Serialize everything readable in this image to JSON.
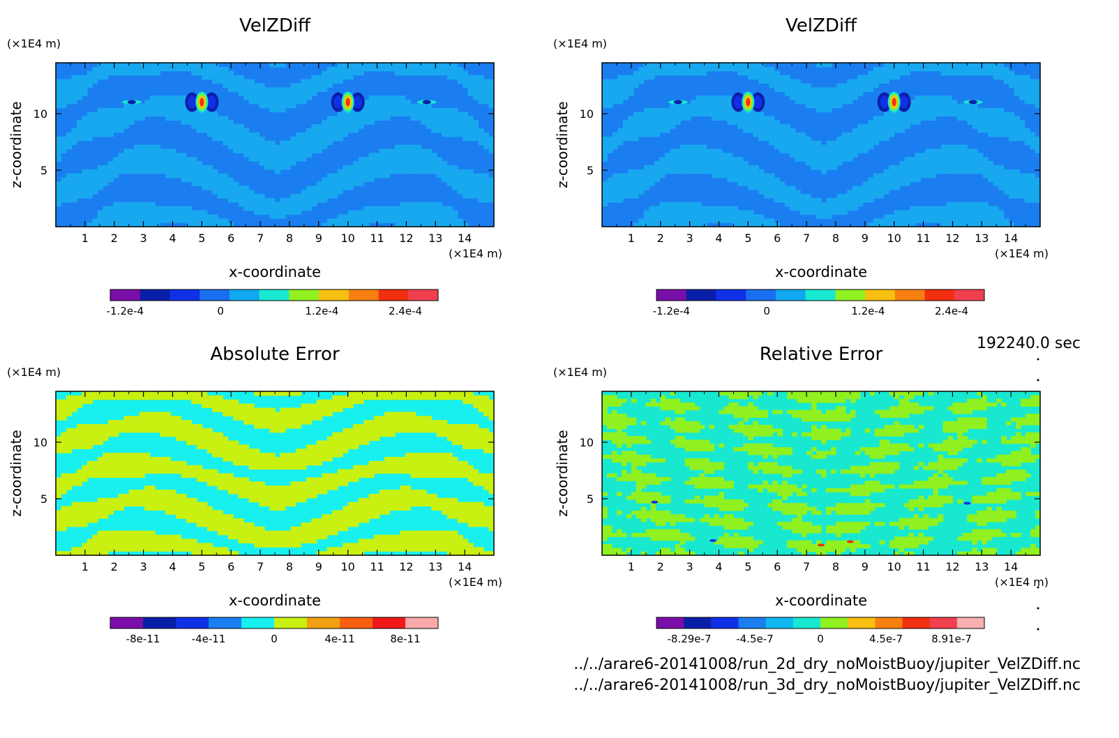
{
  "chart_data": [
    {
      "type": "heatmap",
      "title": "VelZDiff",
      "xlabel": "x-coordinate",
      "ylabel": "z-coordinate",
      "x_unit": "(×1E4 m)",
      "y_unit": "(×1E4 m)",
      "xlim": [
        0,
        15
      ],
      "ylim": [
        0,
        14.5
      ],
      "x_ticks": [
        1,
        2,
        3,
        4,
        5,
        6,
        7,
        8,
        9,
        10,
        11,
        12,
        13,
        14
      ],
      "y_ticks": [
        5,
        10
      ],
      "colorbar": {
        "colors": [
          "#7a0ea8",
          "#0a1fa8",
          "#1030e8",
          "#1a6ef0",
          "#10a8f0",
          "#18e8d0",
          "#90f020",
          "#f8c010",
          "#f88010",
          "#f03010",
          "#f04050"
        ],
        "tick_labels": [
          "-1.2e-4",
          "0",
          "1.2e-4",
          "2.4e-4"
        ]
      }
    },
    {
      "type": "heatmap",
      "title": "VelZDiff",
      "xlabel": "x-coordinate",
      "ylabel": "z-coordinate",
      "x_unit": "(×1E4 m)",
      "y_unit": "(×1E4 m)",
      "xlim": [
        0,
        15
      ],
      "ylim": [
        0,
        14.5
      ],
      "x_ticks": [
        1,
        2,
        3,
        4,
        5,
        6,
        7,
        8,
        9,
        10,
        11,
        12,
        13,
        14
      ],
      "y_ticks": [
        5,
        10
      ],
      "colorbar": {
        "colors": [
          "#7a0ea8",
          "#0a1fa8",
          "#1030e8",
          "#1a6ef0",
          "#10a8f0",
          "#18e8d0",
          "#90f020",
          "#f8c010",
          "#f88010",
          "#f03010",
          "#f04050"
        ],
        "tick_labels": [
          "-1.2e-4",
          "0",
          "1.2e-4",
          "2.4e-4"
        ]
      }
    },
    {
      "type": "heatmap",
      "title": "Absolute Error",
      "xlabel": "x-coordinate",
      "ylabel": "z-coordinate",
      "x_unit": "(×1E4 m)",
      "y_unit": "(×1E4 m)",
      "xlim": [
        0,
        15
      ],
      "ylim": [
        0,
        14.5
      ],
      "x_ticks": [
        1,
        2,
        3,
        4,
        5,
        6,
        7,
        8,
        9,
        10,
        11,
        12,
        13,
        14
      ],
      "y_ticks": [
        5,
        10
      ],
      "colorbar": {
        "colors": [
          "#7a0ea8",
          "#0a1fa8",
          "#1030e8",
          "#1a7ef0",
          "#18f0f0",
          "#c8f010",
          "#f0a010",
          "#f86010",
          "#f01818",
          "#f8a8a8"
        ],
        "tick_labels": [
          "-8e-11",
          "-4e-11",
          "0",
          "4e-11",
          "8e-11"
        ]
      }
    },
    {
      "type": "heatmap",
      "title": "Relative Error",
      "xlabel": "x-coordinate",
      "ylabel": "z-coordinate",
      "x_unit": "(×1E4 m)",
      "y_unit": "(×1E4 m)",
      "xlim": [
        0,
        15
      ],
      "ylim": [
        0,
        14.5
      ],
      "x_ticks": [
        1,
        2,
        3,
        4,
        5,
        6,
        7,
        8,
        9,
        10,
        11,
        12,
        13,
        14
      ],
      "y_ticks": [
        5,
        10
      ],
      "colorbar": {
        "colors": [
          "#7a0ea8",
          "#0a1fa8",
          "#1030e8",
          "#1a7ef0",
          "#10b8f0",
          "#18e8d0",
          "#90f020",
          "#f8c010",
          "#f88010",
          "#f03010",
          "#f04050",
          "#f8b0b0"
        ],
        "tick_labels": [
          "-8.29e-7",
          "-4.5e-7",
          "0",
          "4.5e-7",
          "8.91e-7"
        ]
      }
    }
  ],
  "time_label": "192240.0 sec",
  "footer": {
    "line1": "../../arare6-20141008/run_2d_dry_noMoistBuoy/jupiter_VelZDiff.nc",
    "line2": "../../arare6-20141008/run_3d_dry_noMoistBuoy/jupiter_VelZDiff.nc"
  }
}
